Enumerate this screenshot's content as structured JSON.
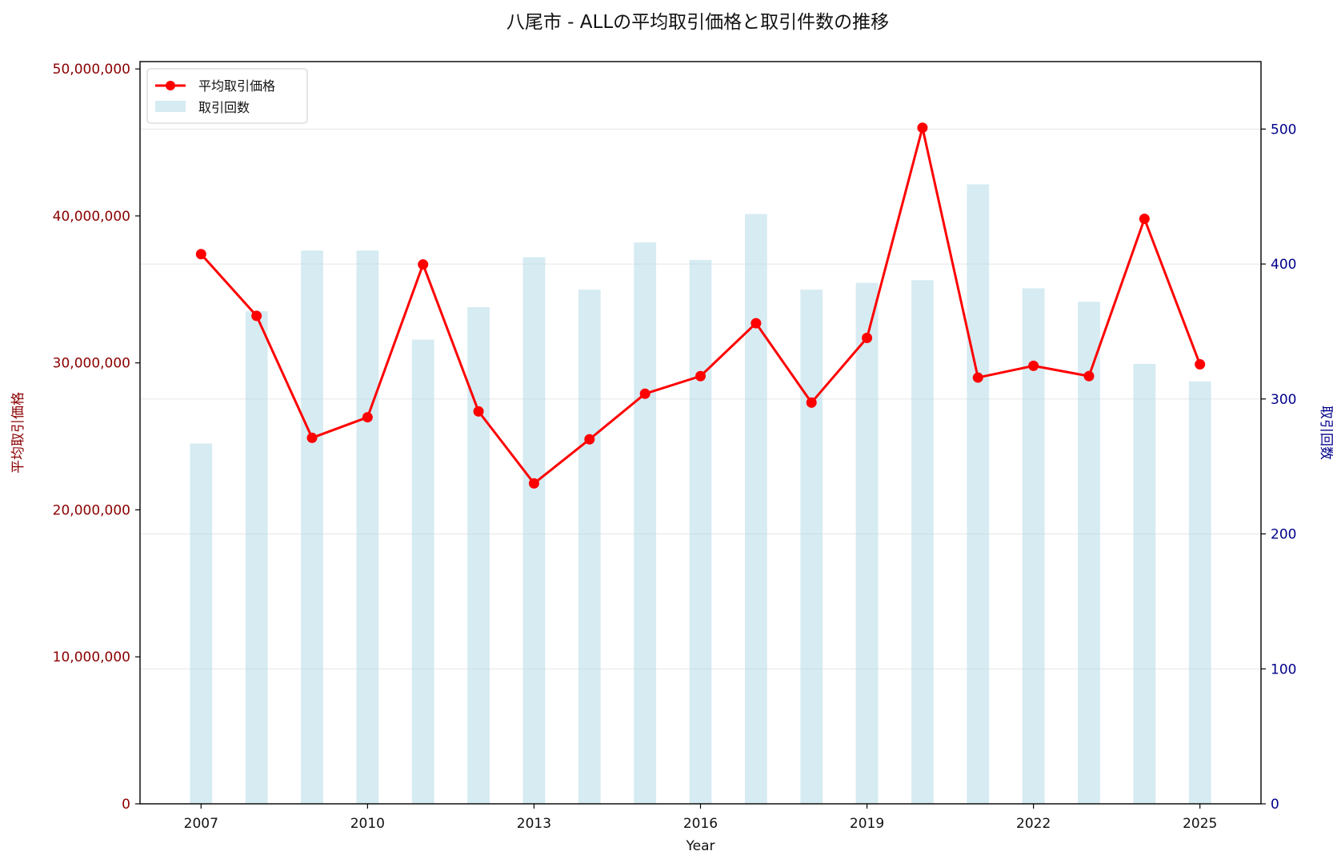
{
  "chart_data": {
    "type": "bar+line",
    "title": "八尾市 - ALLの平均取引価格と取引件数の推移",
    "xlabel": "Year",
    "ylabel_left": "平均取引価格",
    "ylabel_right": "取引回数",
    "x": [
      2007,
      2008,
      2009,
      2010,
      2011,
      2012,
      2013,
      2014,
      2015,
      2016,
      2017,
      2018,
      2019,
      2020,
      2021,
      2022,
      2023,
      2024,
      2025
    ],
    "x_ticks": [
      "2007",
      "2010",
      "2013",
      "2016",
      "2019",
      "2022",
      "2025"
    ],
    "xlim": [
      2005.9,
      2026.1
    ],
    "ylim_left": [
      0,
      50500000
    ],
    "ylim_right": [
      0,
      550
    ],
    "y_ticks_left": [
      "0",
      "10,000,000",
      "20,000,000",
      "30,000,000",
      "40,000,000",
      "50,000,000"
    ],
    "y_ticks_left_values": [
      0,
      10000000,
      20000000,
      30000000,
      40000000,
      50000000
    ],
    "y_ticks_right": [
      "0",
      "100",
      "200",
      "300",
      "400",
      "500"
    ],
    "y_ticks_right_values": [
      0,
      100,
      200,
      300,
      400,
      500
    ],
    "grid": true,
    "legend_position": "top-left",
    "series": [
      {
        "name": "平均取引価格",
        "type": "line",
        "axis": "left",
        "color": "#ff0000",
        "values": [
          37400000,
          33200000,
          24900000,
          26300000,
          36700000,
          26700000,
          21800000,
          24800000,
          27900000,
          29100000,
          32700000,
          27300000,
          31700000,
          46000000,
          29000000,
          29800000,
          29100000,
          39800000,
          29900000
        ]
      },
      {
        "name": "取引回数",
        "type": "bar",
        "axis": "right",
        "color": "#add8e6",
        "values": [
          267,
          365,
          410,
          410,
          344,
          368,
          405,
          381,
          416,
          403,
          437,
          381,
          386,
          388,
          459,
          382,
          372,
          326,
          313
        ]
      }
    ]
  }
}
